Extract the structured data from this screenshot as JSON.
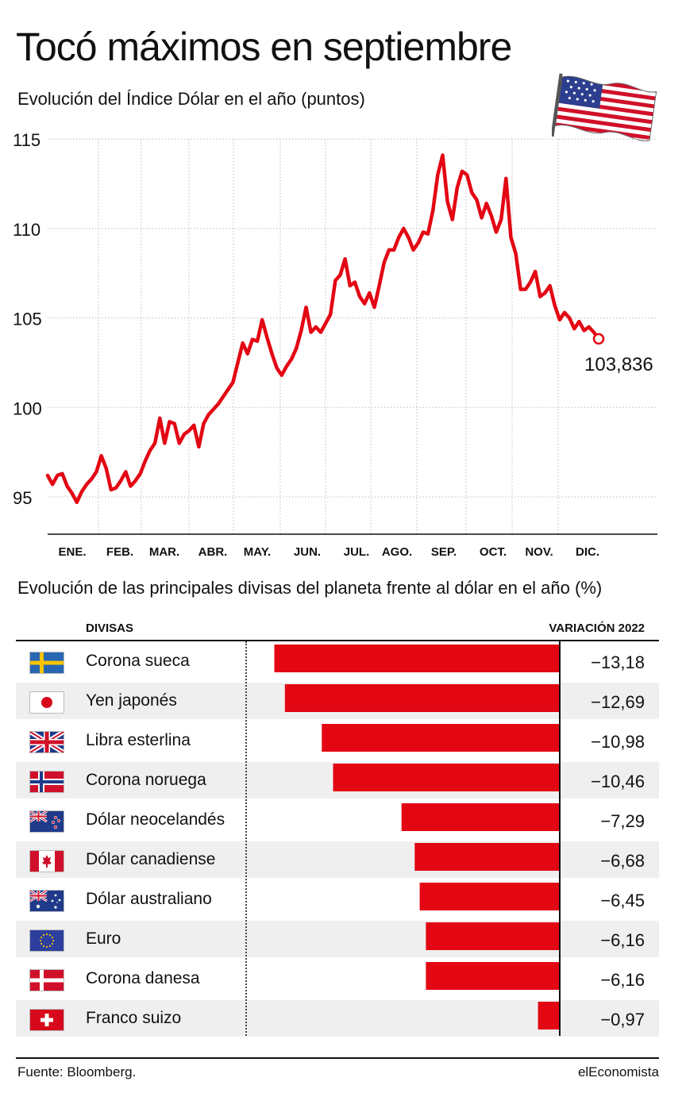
{
  "title": "Tocó máximos en septiembre",
  "subtitle": "Evolución del Índice Dólar en el año (puntos)",
  "chart_data": [
    {
      "type": "line",
      "title": "Evolución del Índice Dólar en el año (puntos)",
      "x_labels": [
        "ENE.",
        "FEB.",
        "MAR.",
        "ABR.",
        "MAY.",
        "JUN.",
        "JUL.",
        "AGO.",
        "SEP.",
        "OCT.",
        "NOV.",
        "DIC."
      ],
      "yticks": [
        95,
        100,
        105,
        110,
        115
      ],
      "ylim": [
        93,
        116
      ],
      "grid": true,
      "series": [
        {
          "values": [
            96.2,
            95.7,
            96.2,
            96.3,
            95.6,
            95.2,
            94.7,
            95.3,
            95.7,
            96.0,
            96.4,
            97.3,
            96.6,
            95.4,
            95.5,
            95.9,
            96.4,
            95.6,
            95.9,
            96.3,
            97.0,
            97.6,
            98.0,
            99.4,
            98.0,
            99.2,
            99.1,
            98.0,
            98.5,
            98.7,
            99.0,
            97.8,
            99.1,
            99.6,
            99.9,
            100.2,
            100.6,
            101.0,
            101.4,
            102.5,
            103.6,
            103.0,
            103.8,
            103.7,
            104.9,
            103.9,
            103.0,
            102.2,
            101.8,
            102.3,
            102.7,
            103.3,
            104.3,
            105.6,
            104.2,
            104.5,
            104.2,
            104.7,
            105.2,
            107.1,
            107.4,
            108.3,
            106.8,
            107.0,
            106.2,
            105.8,
            106.4,
            105.6,
            106.8,
            108.1,
            108.8,
            108.8,
            109.5,
            110.0,
            109.5,
            108.8,
            109.2,
            109.8,
            109.7,
            111.0,
            113.0,
            114.1,
            111.5,
            110.5,
            112.3,
            113.2,
            113.0,
            112.0,
            111.6,
            110.6,
            111.4,
            110.7,
            109.8,
            110.5,
            112.8,
            109.5,
            108.6,
            106.6,
            106.6,
            107.0,
            107.6,
            106.2,
            106.4,
            106.8,
            105.7,
            104.9,
            105.3,
            105.0,
            104.4,
            104.8,
            104.3,
            104.5,
            104.2,
            103.836
          ],
          "last_label": "103,836"
        }
      ]
    },
    {
      "type": "bar",
      "orientation": "horizontal",
      "title": "Evolución de las principales divisas del planeta frente al dólar en el año (%)",
      "categories": [
        "Corona sueca",
        "Yen japonés",
        "Libra esterlina",
        "Corona noruega",
        "Dólar neocelandés",
        "Dólar canadiense",
        "Dólar australiano",
        "Euro",
        "Corona danesa",
        "Franco suizo"
      ],
      "values": [
        -13.18,
        -12.69,
        -10.98,
        -10.46,
        -7.29,
        -6.68,
        -6.45,
        -6.16,
        -6.16,
        -0.97
      ],
      "value_labels": [
        "−13,18",
        "−12,69",
        "−10,98",
        "−10,46",
        "−7,29",
        "−6,68",
        "−6,45",
        "−6,16",
        "−6,16",
        "−0,97"
      ],
      "flags": [
        "sweden-flag-icon",
        "japan-flag-icon",
        "uk-flag-icon",
        "norway-flag-icon",
        "new-zealand-flag-icon",
        "canada-flag-icon",
        "australia-flag-icon",
        "eu-flag-icon",
        "denmark-flag-icon",
        "switzerland-flag-icon"
      ]
    }
  ],
  "section2": {
    "title": "Evolución de las principales divisas del planeta frente al dólar en el año (%)",
    "col_divisas": "DIVISAS",
    "col_variacion": "VARIACIÓN 2022"
  },
  "colors": {
    "accent": "#e30613",
    "grid": "#d0d0d0",
    "text": "#111111",
    "row_shade": "#efefef"
  },
  "footer": {
    "source": "Fuente: Bloomberg.",
    "brand": "elEconomista"
  }
}
